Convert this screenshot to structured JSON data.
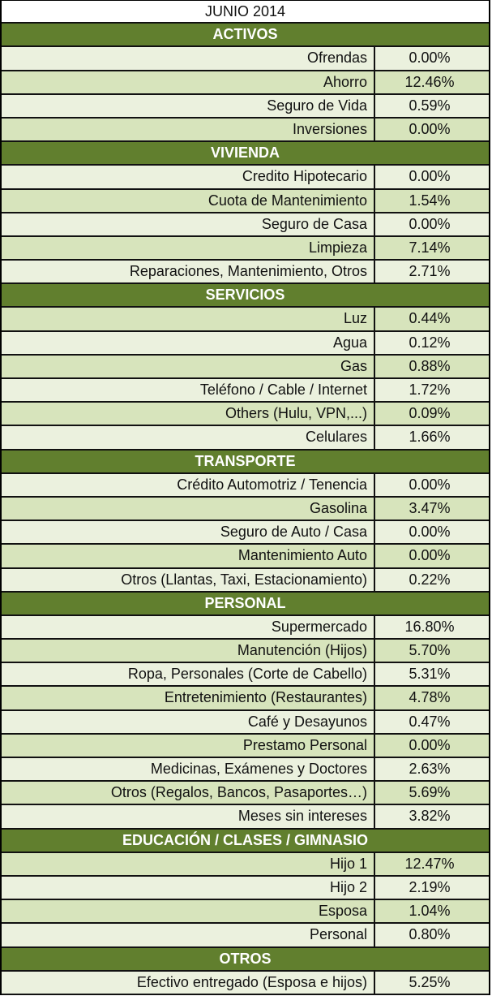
{
  "title": "JUNIO 2014",
  "colors": {
    "header": "#617f2e",
    "row_light": "#ebf1de",
    "row_dark": "#d7e4bc"
  },
  "sections": [
    {
      "name": "ACTIVOS",
      "start_dark": false,
      "rows": [
        {
          "label": "Ofrendas",
          "value": "0.00%"
        },
        {
          "label": "Ahorro",
          "value": "12.46%"
        },
        {
          "label": "Seguro de Vida",
          "value": "0.59%"
        },
        {
          "label": "Inversiones",
          "value": "0.00%"
        }
      ]
    },
    {
      "name": "VIVIENDA",
      "start_dark": false,
      "rows": [
        {
          "label": "Credito Hipotecario",
          "value": "0.00%"
        },
        {
          "label": "Cuota de Mantenimiento",
          "value": "1.54%"
        },
        {
          "label": "Seguro de Casa",
          "value": "0.00%"
        },
        {
          "label": "Limpieza",
          "value": "7.14%"
        },
        {
          "label": "Reparaciones, Mantenimiento, Otros",
          "value": "2.71%"
        }
      ]
    },
    {
      "name": "SERVICIOS",
      "start_dark": true,
      "rows": [
        {
          "label": "Luz",
          "value": "0.44%"
        },
        {
          "label": "Agua",
          "value": "0.12%"
        },
        {
          "label": "Gas",
          "value": "0.88%"
        },
        {
          "label": "Teléfono / Cable / Internet",
          "value": "1.72%"
        },
        {
          "label": "Others (Hulu, VPN,...)",
          "value": "0.09%"
        },
        {
          "label": "Celulares",
          "value": "1.66%"
        }
      ]
    },
    {
      "name": "TRANSPORTE",
      "start_dark": false,
      "rows": [
        {
          "label": "Crédito Automotriz / Tenencia",
          "value": "0.00%"
        },
        {
          "label": "Gasolina",
          "value": "3.47%"
        },
        {
          "label": "Seguro de Auto / Casa",
          "value": "0.00%"
        },
        {
          "label": "Mantenimiento Auto",
          "value": "0.00%"
        },
        {
          "label": "Otros (Llantas, Taxi, Estacionamiento)",
          "value": "0.22%"
        }
      ]
    },
    {
      "name": "PERSONAL",
      "start_dark": false,
      "rows": [
        {
          "label": "Supermercado",
          "value": "16.80%"
        },
        {
          "label": "Manutención (Hijos)",
          "value": "5.70%"
        },
        {
          "label": "Ropa, Personales (Corte de Cabello)",
          "value": "5.31%"
        },
        {
          "label": "Entretenimiento (Restaurantes)",
          "value": "4.78%"
        },
        {
          "label": "Café y Desayunos",
          "value": "0.47%"
        },
        {
          "label": "Prestamo Personal",
          "value": "0.00%"
        },
        {
          "label": "Medicinas, Exámenes y Doctores",
          "value": "2.63%"
        },
        {
          "label": "Otros (Regalos, Bancos, Pasaportes…)",
          "value": "5.69%"
        },
        {
          "label": "Meses sin intereses",
          "value": "3.82%"
        }
      ]
    },
    {
      "name": "EDUCACIÓN / CLASES / GIMNASIO",
      "start_dark": true,
      "rows": [
        {
          "label": "Hijo 1",
          "value": "12.47%"
        },
        {
          "label": "Hijo 2",
          "value": "2.19%"
        },
        {
          "label": "Esposa",
          "value": "1.04%"
        },
        {
          "label": "Personal",
          "value": "0.80%"
        }
      ]
    },
    {
      "name": "OTROS",
      "start_dark": false,
      "rows": [
        {
          "label": "Efectivo entregado (Esposa e hijos)",
          "value": "5.25%"
        }
      ]
    }
  ]
}
